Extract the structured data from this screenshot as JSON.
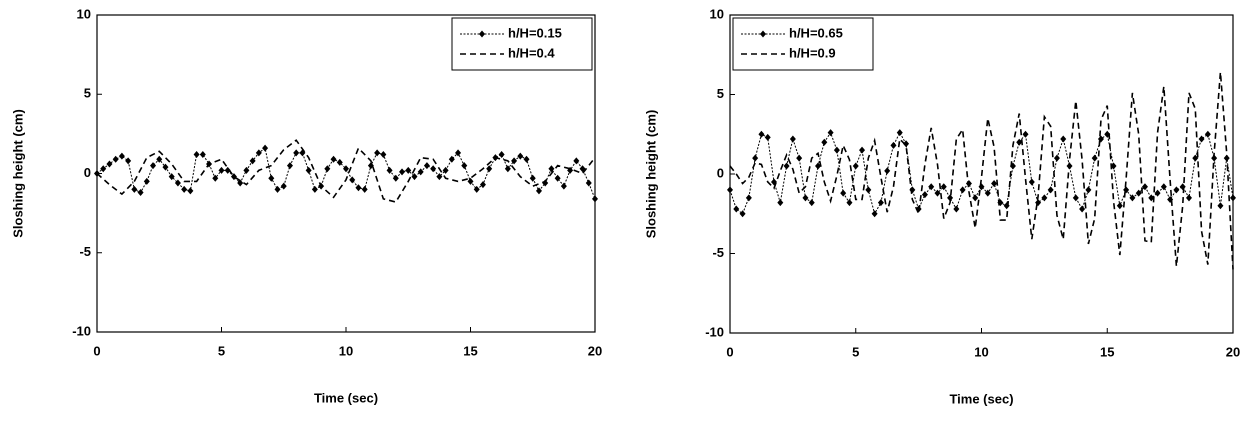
{
  "chart_data": [
    {
      "type": "line",
      "xlabel": "Time  (sec)",
      "ylabel": "Sloshing  height  (cm)",
      "xlim": [
        0,
        20
      ],
      "ylim": [
        -10,
        10
      ],
      "xticks": [
        0,
        5,
        10,
        15,
        20
      ],
      "yticks": [
        -10,
        -5,
        0,
        5,
        10
      ],
      "legend": "upper right",
      "series": [
        {
          "name": "h/H=0.15",
          "color": "#000000",
          "style": "dotted-marker",
          "x": [
            0,
            0.25,
            0.5,
            0.75,
            1,
            1.25,
            1.5,
            1.75,
            2,
            2.25,
            2.5,
            2.75,
            3,
            3.25,
            3.5,
            3.75,
            4,
            4.25,
            4.5,
            4.75,
            5,
            5.25,
            5.5,
            5.75,
            6,
            6.25,
            6.5,
            6.75,
            7,
            7.25,
            7.5,
            7.75,
            8,
            8.25,
            8.5,
            8.75,
            9,
            9.25,
            9.5,
            9.75,
            10,
            10.25,
            10.5,
            10.75,
            11,
            11.25,
            11.5,
            11.75,
            12,
            12.25,
            12.5,
            12.75,
            13,
            13.25,
            13.5,
            13.75,
            14,
            14.25,
            14.5,
            14.75,
            15,
            15.25,
            15.5,
            15.75,
            16,
            16.25,
            16.5,
            16.75,
            17,
            17.25,
            17.5,
            17.75,
            18,
            18.25,
            18.5,
            18.75,
            19,
            19.25,
            19.5,
            19.75,
            20
          ],
          "values": [
            0,
            0.3,
            0.6,
            0.9,
            1.1,
            0.8,
            -1.0,
            -1.2,
            -0.5,
            0.5,
            0.9,
            0.4,
            -0.2,
            -0.6,
            -1.0,
            -1.1,
            1.2,
            1.2,
            0.6,
            -0.3,
            0.2,
            0.2,
            -0.2,
            -0.6,
            0.2,
            0.8,
            1.3,
            1.6,
            -0.3,
            -1.0,
            -0.8,
            0.5,
            1.3,
            1.3,
            0.2,
            -1.0,
            -0.8,
            0.3,
            0.9,
            0.7,
            0.3,
            -0.4,
            -0.9,
            -1.0,
            0.5,
            1.3,
            1.2,
            0.2,
            -0.3,
            0.1,
            0.2,
            -0.2,
            0.1,
            0.5,
            0.3,
            -0.2,
            0.2,
            0.9,
            1.3,
            0.5,
            -0.5,
            -1.0,
            -0.7,
            0.3,
            1.0,
            1.2,
            0.3,
            0.8,
            1.1,
            0.9,
            -0.3,
            -1.1,
            -0.6,
            0.3,
            -0.3,
            -0.8,
            0.2,
            0.8,
            0.3,
            -0.6,
            -1.6
          ]
        },
        {
          "name": "h/H=0.4",
          "color": "#000000",
          "style": "dashed",
          "x": [
            0,
            0.5,
            1,
            1.5,
            2,
            2.5,
            3,
            3.5,
            4,
            4.5,
            5,
            5.5,
            6,
            6.5,
            7,
            7.5,
            8,
            8.5,
            9,
            9.5,
            10,
            10.5,
            11,
            11.5,
            12,
            12.5,
            13,
            13.5,
            14,
            14.5,
            15,
            15.5,
            16,
            16.5,
            17,
            17.5,
            18,
            18.5,
            19,
            19.5,
            20
          ],
          "values": [
            0,
            -0.7,
            -1.3,
            -0.5,
            1.0,
            1.4,
            0.6,
            -0.5,
            -0.5,
            0.6,
            0.9,
            -0.2,
            -0.7,
            0.2,
            0.5,
            1.5,
            2.1,
            1.0,
            -0.8,
            -1.5,
            -0.4,
            1.6,
            0.8,
            -1.6,
            -1.8,
            -0.5,
            1.0,
            0.9,
            -0.3,
            -0.5,
            -0.3,
            0.3,
            1.0,
            0.8,
            -0.2,
            -0.8,
            -0.5,
            0.5,
            0.3,
            0,
            1.0
          ]
        }
      ]
    },
    {
      "type": "line",
      "xlabel": "Time  (sec)",
      "ylabel": "Sloshing  height  (cm)",
      "xlim": [
        0,
        20
      ],
      "ylim": [
        -10,
        10
      ],
      "xticks": [
        0,
        5,
        10,
        15,
        20
      ],
      "yticks": [
        -10,
        -5,
        0,
        5,
        10
      ],
      "legend": "upper left",
      "series": [
        {
          "name": "h/H=0.65",
          "color": "#000000",
          "style": "dotted-marker",
          "x": [
            0,
            0.25,
            0.5,
            0.75,
            1,
            1.25,
            1.5,
            1.75,
            2,
            2.25,
            2.5,
            2.75,
            3,
            3.25,
            3.5,
            3.75,
            4,
            4.25,
            4.5,
            4.75,
            5,
            5.25,
            5.5,
            5.75,
            6,
            6.25,
            6.5,
            6.75,
            7,
            7.25,
            7.5,
            7.75,
            8,
            8.25,
            8.5,
            8.75,
            9,
            9.25,
            9.5,
            9.75,
            10,
            10.25,
            10.5,
            10.75,
            11,
            11.25,
            11.5,
            11.75,
            12,
            12.25,
            12.5,
            12.75,
            13,
            13.25,
            13.5,
            13.75,
            14,
            14.25,
            14.5,
            14.75,
            15,
            15.25,
            15.5,
            15.75,
            16,
            16.25,
            16.5,
            16.75,
            17,
            17.25,
            17.5,
            17.75,
            18,
            18.25,
            18.5,
            18.75,
            19,
            19.25,
            19.5,
            19.75,
            20
          ],
          "values": [
            -1.0,
            -2.2,
            -2.5,
            -1.5,
            1.0,
            2.5,
            2.3,
            -0.5,
            -1.8,
            0.5,
            2.2,
            1.0,
            -1.5,
            -1.8,
            0.5,
            2.0,
            2.6,
            1.5,
            -1.2,
            -1.8,
            0.5,
            1.5,
            -1.0,
            -2.5,
            -1.8,
            0.2,
            1.8,
            2.6,
            1.9,
            -1.0,
            -2.2,
            -1.3,
            -0.8,
            -1.2,
            -0.8,
            -1.5,
            -2.2,
            -1.0,
            -0.6,
            -1.5,
            -0.8,
            -1.2,
            -0.6,
            -1.8,
            -2.0,
            0.5,
            2.0,
            2.5,
            -0.5,
            -1.8,
            -1.5,
            -1.0,
            1.0,
            2.2,
            0.5,
            -1.5,
            -2.2,
            -1.0,
            1.0,
            2.2,
            2.5,
            0.5,
            -2.0,
            -1.0,
            -1.5,
            -1.2,
            -0.8,
            -1.5,
            -1.2,
            -0.8,
            -1.6,
            -1.0,
            -0.8,
            -1.5,
            1.0,
            2.2,
            2.5,
            1.0,
            -2.0,
            1.0,
            -1.5
          ]
        },
        {
          "name": "h/H=0.9",
          "color": "#000000",
          "style": "dashed",
          "x": [
            0,
            0.25,
            0.5,
            0.75,
            1,
            1.25,
            1.5,
            1.75,
            2,
            2.25,
            2.5,
            2.75,
            3,
            3.25,
            3.5,
            3.75,
            4,
            4.25,
            4.5,
            4.75,
            5,
            5.25,
            5.5,
            5.75,
            6,
            6.25,
            6.5,
            6.75,
            7,
            7.25,
            7.5,
            7.75,
            8,
            8.25,
            8.5,
            8.75,
            9,
            9.25,
            9.5,
            9.75,
            10,
            10.25,
            10.5,
            10.75,
            11,
            11.25,
            11.5,
            11.75,
            12,
            12.25,
            12.5,
            12.75,
            13,
            13.25,
            13.5,
            13.75,
            14,
            14.25,
            14.5,
            14.75,
            15,
            15.25,
            15.5,
            15.75,
            16,
            16.25,
            16.5,
            16.75,
            17,
            17.25,
            17.5,
            17.75,
            18,
            18.25,
            18.5,
            18.75,
            19,
            19.25,
            19.5,
            19.75,
            20
          ],
          "values": [
            0.5,
            0,
            -0.6,
            -0.2,
            0.7,
            0.6,
            -0.5,
            -0.9,
            0.2,
            1.2,
            0.3,
            -1.2,
            -0.8,
            1.0,
            1.3,
            -0.5,
            -1.7,
            -0.1,
            1.8,
            0.9,
            -1.6,
            -1.6,
            1.0,
            2.1,
            -0.2,
            -2.4,
            -0.8,
            2.2,
            1.8,
            -1.6,
            -2.5,
            0.6,
            2.9,
            0.6,
            -2.8,
            -1.8,
            2.2,
            2.8,
            -1.1,
            -3.4,
            -0.2,
            3.5,
            1.7,
            -2.9,
            -2.9,
            1.8,
            3.8,
            -0.3,
            -4.1,
            -1.4,
            3.6,
            3.0,
            -2.6,
            -4.1,
            0.9,
            4.6,
            0.9,
            -4.4,
            -2.8,
            3.4,
            4.3,
            -1.7,
            -5.1,
            -0.3,
            5.1,
            2.5,
            -4.2,
            -4.3,
            2.6,
            5.5,
            -0.4,
            -5.8,
            -2.0,
            5.1,
            4.1,
            -3.6,
            -5.7,
            1.3,
            6.4,
            1.3,
            -6.0
          ]
        }
      ]
    }
  ]
}
